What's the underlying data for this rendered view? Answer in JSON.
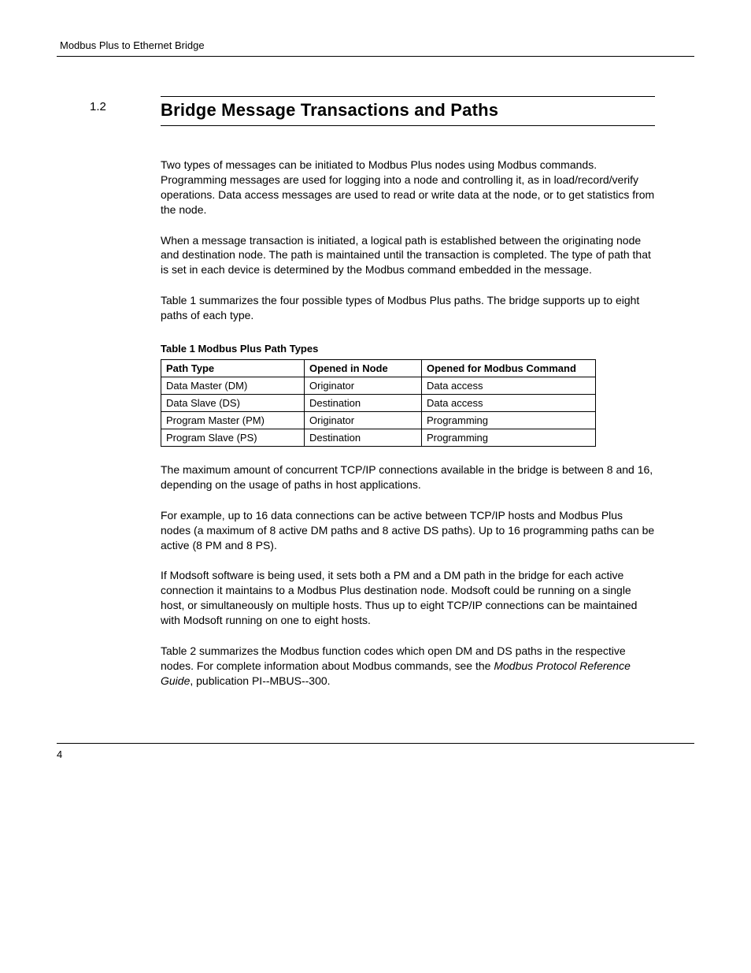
{
  "header": {
    "running_title": "Modbus Plus to Ethernet Bridge"
  },
  "section": {
    "number": "1.2",
    "title": "Bridge Message Transactions and Paths"
  },
  "paragraphs": {
    "p1": "Two types of messages can be initiated to Modbus Plus nodes using Modbus commands. Programming messages are used for logging into a node and controlling it, as in load/record/verify operations. Data access messages are used to read or write data at the node, or to get statistics from the node.",
    "p2": "When a message transaction is initiated, a logical path is established between the originating node and destination node. The path is maintained until the transaction is completed. The type of path that is set in each device is determined by the Modbus command embedded in the message.",
    "p3": "Table 1 summarizes the four possible types of Modbus Plus paths. The bridge supports up to eight paths of each type.",
    "p4": "The maximum amount of concurrent TCP/IP connections available in the bridge is between 8 and 16, depending on the usage of paths in host applications.",
    "p5": "For example, up to 16 data connections can be active between TCP/IP hosts and Modbus Plus nodes (a maximum of 8 active DM paths and 8 active DS paths). Up to 16 programming paths can be active (8 PM and 8 PS).",
    "p6": "If Modsoft software is being used, it sets both a PM and a DM path in the bridge for each active connection it maintains to a Modbus Plus destination node. Modsoft could be running on a single host, or simultaneously on multiple hosts. Thus up to eight TCP/IP connections can be maintained with Modsoft running on one to eight hosts.",
    "p7_part1": "Table 2 summarizes the Modbus function codes which open DM and DS paths in the respective nodes. For complete information about Modbus commands, see the ",
    "p7_italic": "Modbus Protocol Reference Guide",
    "p7_part2": ", publication PI--MBUS--300."
  },
  "table1": {
    "caption": "Table 1   Modbus Plus Path Types",
    "headers": {
      "col1": "Path Type",
      "col2": "Opened in Node",
      "col3": "Opened for Modbus Command"
    },
    "rows": [
      {
        "c1": "Data Master (DM)",
        "c2": "Originator",
        "c3": "Data access"
      },
      {
        "c1": "Data Slave (DS)",
        "c2": "Destination",
        "c3": "Data access"
      },
      {
        "c1": "Program Master (PM)",
        "c2": "Originator",
        "c3": "Programming"
      },
      {
        "c1": "Program Slave (PS)",
        "c2": "Destination",
        "c3": "Programming"
      }
    ]
  },
  "footer": {
    "page_number": "4"
  }
}
